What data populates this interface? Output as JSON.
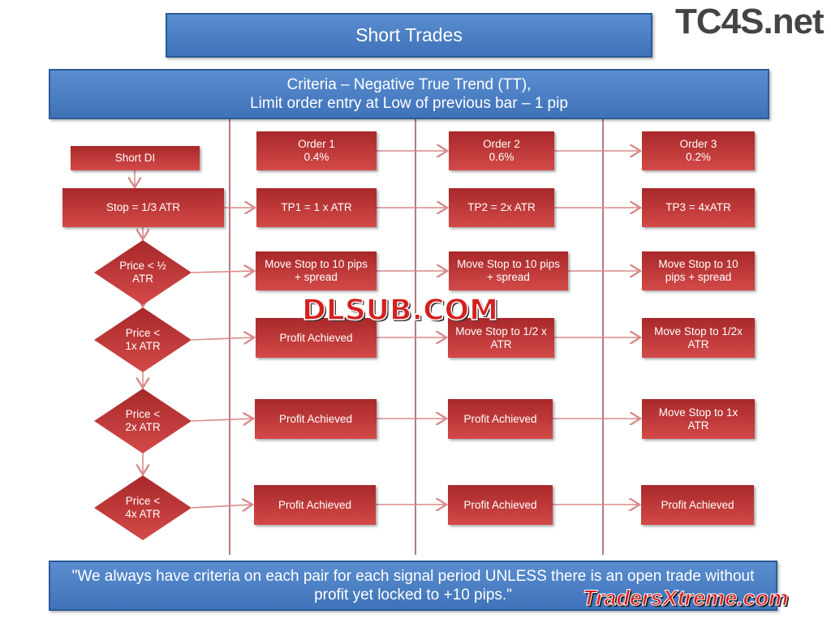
{
  "title": "Short Trades",
  "logo": "TC4S.net",
  "criteria": {
    "line1": "Criteria – Negative True Trend (TT),",
    "line2": "Limit order entry at Low of previous bar – 1 pip"
  },
  "left": {
    "short_di": "Short DI",
    "stop": "Stop = 1/3 ATR",
    "diamonds": [
      "Price < ½\nATR",
      "Price <\n1x ATR",
      "Price <\n2x ATR",
      "Price <\n4x ATR"
    ]
  },
  "orders": [
    {
      "header": "Order 1\n0.4%",
      "tp": "TP1 = 1 x ATR",
      "steps": [
        "Move Stop to 10 pips\n+ spread",
        "Profit Achieved",
        "Profit Achieved",
        "Profit Achieved"
      ]
    },
    {
      "header": "Order 2\n0.6%",
      "tp": "TP2 = 2x ATR",
      "steps": [
        "Move Stop to 10 pips\n+ spread",
        "Move Stop to 1/2 x\nATR",
        "Profit Achieved",
        "Profit Achieved"
      ]
    },
    {
      "header": "Order 3\n0.2%",
      "tp": "TP3 = 4xATR",
      "steps": [
        "Move Stop to 10\npips + spread",
        "Move Stop to 1/2x\nATR",
        "Move Stop to 1x\nATR",
        "Profit Achieved"
      ]
    }
  ],
  "footer": "\"We always have criteria on each pair for each signal period UNLESS there is an open trade without profit yet locked to +10 pips.\"",
  "watermarks": {
    "center": "DLSUB.COM",
    "bottom": "TradersXtreme.com"
  },
  "colors": {
    "box_red": "#c0393a",
    "header_blue": "#4a7fc4",
    "line": "#d98a8a",
    "divider": "#8a2a2a"
  }
}
